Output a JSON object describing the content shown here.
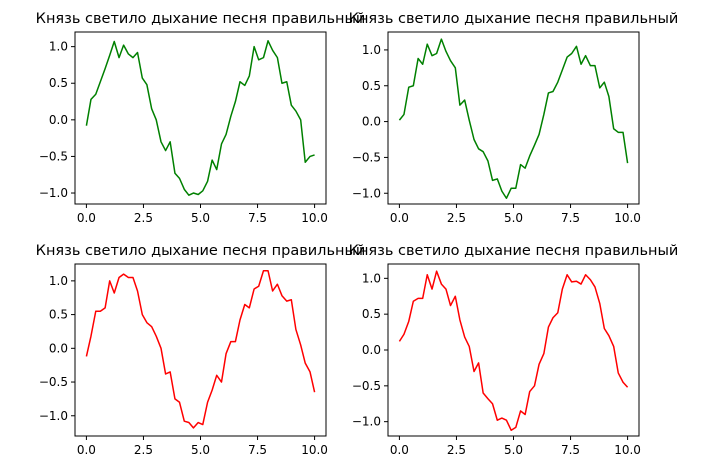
{
  "chart_data": [
    {
      "type": "line",
      "title": "Князь светило дыхание песня правильный",
      "color": "#008000",
      "xlim": [
        -0.5,
        10.5
      ],
      "ylim": [
        -1.15,
        1.2
      ],
      "xticks": [
        0.0,
        2.5,
        5.0,
        7.5,
        10.0
      ],
      "xtick_labels": [
        "0.0",
        "2.5",
        "5.0",
        "7.5",
        "10.0"
      ],
      "yticks": [
        -1.0,
        -0.5,
        0.0,
        0.5,
        1.0
      ],
      "ytick_labels": [
        "−1.0",
        "−0.5",
        "0.0",
        "0.5",
        "1.0"
      ],
      "series": [
        {
          "x": [
            0.0,
            0.2,
            0.41,
            0.61,
            0.82,
            1.02,
            1.22,
            1.43,
            1.63,
            1.84,
            2.04,
            2.24,
            2.45,
            2.65,
            2.86,
            3.06,
            3.27,
            3.47,
            3.67,
            3.88,
            4.08,
            4.29,
            4.49,
            4.69,
            4.9,
            5.1,
            5.31,
            5.51,
            5.71,
            5.92,
            6.12,
            6.33,
            6.53,
            6.73,
            6.94,
            7.14,
            7.35,
            7.55,
            7.76,
            7.96,
            8.16,
            8.37,
            8.57,
            8.78,
            8.98,
            9.18,
            9.39,
            9.59,
            9.8,
            10.0
          ],
          "y": [
            -0.08,
            0.28,
            0.35,
            0.52,
            0.7,
            0.88,
            1.07,
            0.85,
            1.02,
            0.9,
            0.85,
            0.92,
            0.57,
            0.48,
            0.15,
            0.0,
            -0.3,
            -0.42,
            -0.3,
            -0.73,
            -0.8,
            -0.95,
            -1.03,
            -1.0,
            -1.02,
            -0.97,
            -0.84,
            -0.55,
            -0.68,
            -0.33,
            -0.2,
            0.05,
            0.25,
            0.52,
            0.47,
            0.6,
            1.0,
            0.82,
            0.85,
            1.08,
            0.95,
            0.85,
            0.5,
            0.52,
            0.2,
            0.12,
            0.0,
            -0.58,
            -0.5,
            -0.48
          ]
        }
      ]
    },
    {
      "type": "line",
      "title": "Князь светило дыхание песня правильный",
      "color": "#008000",
      "xlim": [
        -0.5,
        10.5
      ],
      "ylim": [
        -1.15,
        1.25
      ],
      "xticks": [
        0.0,
        2.5,
        5.0,
        7.5,
        10.0
      ],
      "xtick_labels": [
        "0.0",
        "2.5",
        "5.0",
        "7.5",
        "10.0"
      ],
      "yticks": [
        -1.0,
        -0.5,
        0.0,
        0.5,
        1.0
      ],
      "ytick_labels": [
        "−1.0",
        "−0.5",
        "0.0",
        "0.5",
        "1.0"
      ],
      "series": [
        {
          "x": [
            0.0,
            0.2,
            0.41,
            0.61,
            0.82,
            1.02,
            1.22,
            1.43,
            1.63,
            1.84,
            2.04,
            2.24,
            2.45,
            2.65,
            2.86,
            3.06,
            3.27,
            3.47,
            3.67,
            3.88,
            4.08,
            4.29,
            4.49,
            4.69,
            4.9,
            5.1,
            5.31,
            5.51,
            5.71,
            5.92,
            6.12,
            6.33,
            6.53,
            6.73,
            6.94,
            7.14,
            7.35,
            7.55,
            7.76,
            7.96,
            8.16,
            8.37,
            8.57,
            8.78,
            8.98,
            9.18,
            9.39,
            9.59,
            9.8,
            10.0
          ],
          "y": [
            0.02,
            0.1,
            0.48,
            0.5,
            0.88,
            0.8,
            1.08,
            0.92,
            0.95,
            1.15,
            0.98,
            0.85,
            0.75,
            0.23,
            0.3,
            0.02,
            -0.25,
            -0.38,
            -0.42,
            -0.55,
            -0.82,
            -0.8,
            -0.97,
            -1.07,
            -0.93,
            -0.93,
            -0.6,
            -0.65,
            -0.48,
            -0.33,
            -0.18,
            0.1,
            0.4,
            0.42,
            0.55,
            0.72,
            0.9,
            0.95,
            1.05,
            0.8,
            0.92,
            0.78,
            0.78,
            0.47,
            0.55,
            0.35,
            -0.1,
            -0.15,
            -0.15,
            -0.58
          ]
        }
      ]
    },
    {
      "type": "line",
      "title": "Князь светило дыхание песня правильный",
      "color": "#ff0000",
      "xlim": [
        -0.5,
        10.5
      ],
      "ylim": [
        -1.3,
        1.25
      ],
      "xticks": [
        0.0,
        2.5,
        5.0,
        7.5,
        10.0
      ],
      "xtick_labels": [
        "0.0",
        "2.5",
        "5.0",
        "7.5",
        "10.0"
      ],
      "yticks": [
        -1.0,
        -0.5,
        0.0,
        0.5,
        1.0
      ],
      "ytick_labels": [
        "−1.0",
        "−0.5",
        "0.0",
        "0.5",
        "1.0"
      ],
      "series": [
        {
          "x": [
            0.0,
            0.2,
            0.41,
            0.61,
            0.82,
            1.02,
            1.22,
            1.43,
            1.63,
            1.84,
            2.04,
            2.24,
            2.45,
            2.65,
            2.86,
            3.06,
            3.27,
            3.47,
            3.67,
            3.88,
            4.08,
            4.29,
            4.49,
            4.69,
            4.9,
            5.1,
            5.31,
            5.51,
            5.71,
            5.92,
            6.12,
            6.33,
            6.53,
            6.73,
            6.94,
            7.14,
            7.35,
            7.55,
            7.76,
            7.96,
            8.16,
            8.37,
            8.57,
            8.78,
            8.98,
            9.18,
            9.39,
            9.59,
            9.8,
            10.0
          ],
          "y": [
            -0.12,
            0.18,
            0.55,
            0.55,
            0.6,
            1.0,
            0.82,
            1.05,
            1.1,
            1.05,
            1.05,
            0.85,
            0.5,
            0.38,
            0.32,
            0.18,
            0.0,
            -0.38,
            -0.35,
            -0.75,
            -0.8,
            -1.08,
            -1.1,
            -1.18,
            -1.1,
            -1.13,
            -0.8,
            -0.62,
            -0.4,
            -0.5,
            -0.08,
            0.1,
            0.1,
            0.42,
            0.65,
            0.6,
            0.88,
            0.92,
            1.15,
            1.15,
            0.85,
            0.95,
            0.78,
            0.7,
            0.72,
            0.28,
            0.05,
            -0.22,
            -0.35,
            -0.65
          ]
        }
      ]
    },
    {
      "type": "line",
      "title": "Князь светило дыхание песня правильный",
      "color": "#ff0000",
      "xlim": [
        -0.5,
        10.5
      ],
      "ylim": [
        -1.2,
        1.2
      ],
      "xticks": [
        0.0,
        2.5,
        5.0,
        7.5,
        10.0
      ],
      "xtick_labels": [
        "0.0",
        "2.5",
        "5.0",
        "7.5",
        "10.0"
      ],
      "yticks": [
        -1.0,
        -0.5,
        0.0,
        0.5,
        1.0
      ],
      "ytick_labels": [
        "−1.0",
        "−0.5",
        "0.0",
        "0.5",
        "1.0"
      ],
      "series": [
        {
          "x": [
            0.0,
            0.2,
            0.41,
            0.61,
            0.82,
            1.02,
            1.22,
            1.43,
            1.63,
            1.84,
            2.04,
            2.24,
            2.45,
            2.65,
            2.86,
            3.06,
            3.27,
            3.47,
            3.67,
            3.88,
            4.08,
            4.29,
            4.49,
            4.69,
            4.9,
            5.1,
            5.31,
            5.51,
            5.71,
            5.92,
            6.12,
            6.33,
            6.53,
            6.73,
            6.94,
            7.14,
            7.35,
            7.55,
            7.76,
            7.96,
            8.16,
            8.37,
            8.57,
            8.78,
            8.98,
            9.18,
            9.39,
            9.59,
            9.8,
            10.0
          ],
          "y": [
            0.12,
            0.22,
            0.4,
            0.68,
            0.72,
            0.72,
            1.05,
            0.85,
            1.1,
            0.92,
            0.85,
            0.62,
            0.75,
            0.42,
            0.18,
            0.05,
            -0.3,
            -0.18,
            -0.6,
            -0.68,
            -0.75,
            -0.98,
            -0.95,
            -0.98,
            -1.12,
            -1.08,
            -0.85,
            -0.9,
            -0.58,
            -0.5,
            -0.2,
            -0.05,
            0.32,
            0.45,
            0.52,
            0.85,
            1.05,
            0.95,
            0.96,
            0.92,
            1.05,
            0.98,
            0.88,
            0.65,
            0.3,
            0.2,
            0.05,
            -0.32,
            -0.45,
            -0.52
          ]
        }
      ]
    }
  ]
}
